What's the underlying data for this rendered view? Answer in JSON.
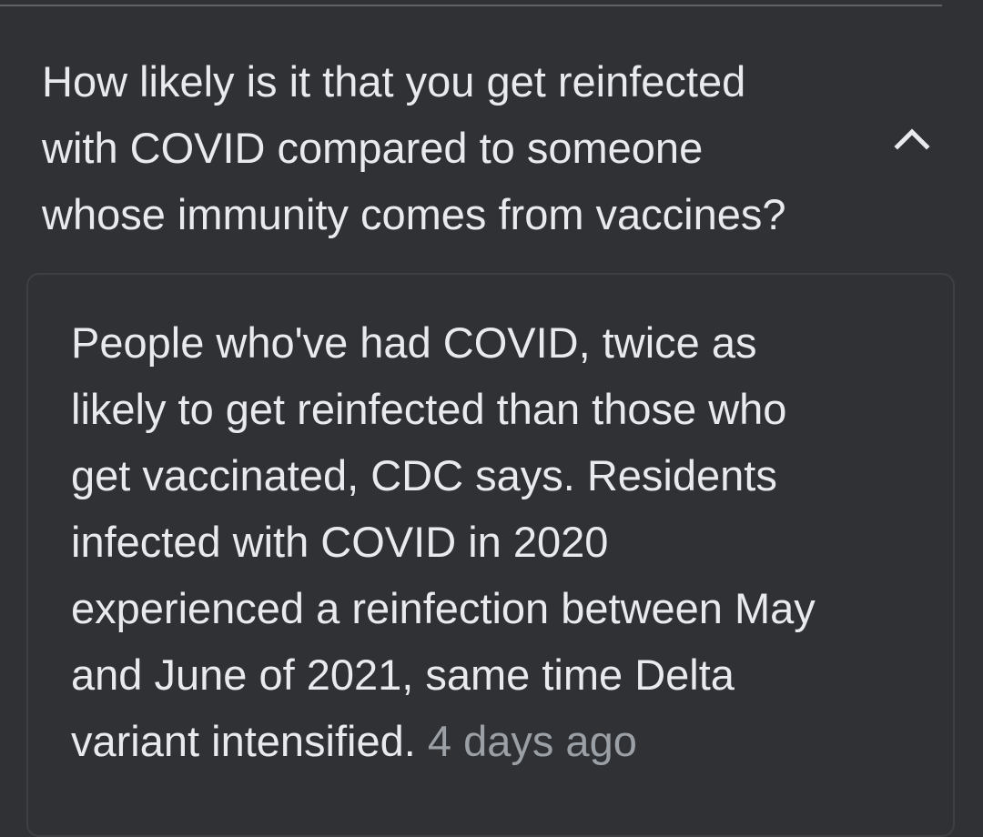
{
  "question": {
    "text": "How likely is it that you get reinfected\nwith COVID compared to someone\nwhose immunity comes from vaccines?",
    "expanded": true,
    "toggle_icon": "chevron-up-icon"
  },
  "answer": {
    "text": "People who've had COVID, twice as\nlikely to get reinfected than those who\nget vaccinated, CDC says. Residents\ninfected with COVID in 2020\nexperienced a reinfection between May\nand June of 2021, same time Delta\nvariant intensified.",
    "date": "4 days ago"
  },
  "colors": {
    "background": "#303134",
    "primary_text": "#e8eaed",
    "secondary_text": "#9aa0a6",
    "divider": "#5f6368",
    "card_border": "#3c4043"
  }
}
